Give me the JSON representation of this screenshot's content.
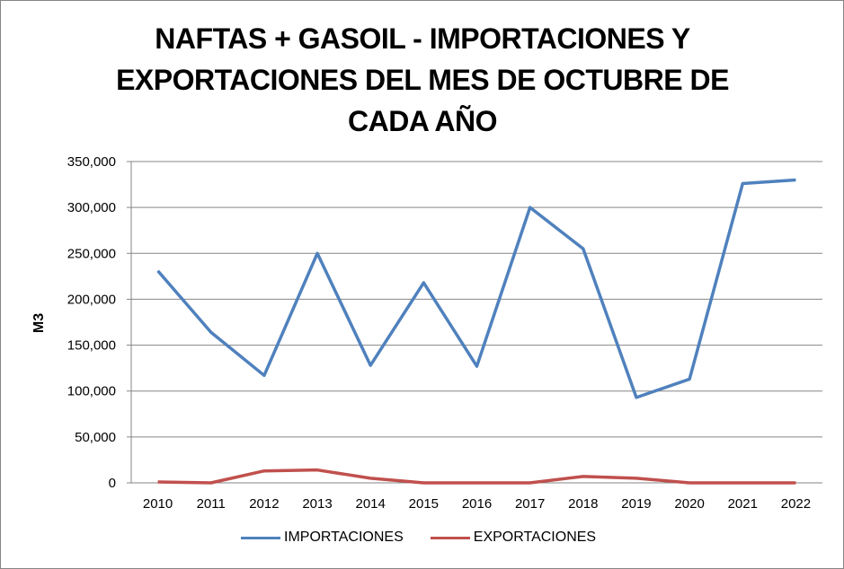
{
  "chart_data": {
    "type": "line",
    "title": "NAFTAS + GASOIL - IMPORTACIONES Y EXPORTACIONES DEL MES DE OCTUBRE DE CADA AÑO",
    "title_lines": [
      "NAFTAS + GASOIL - IMPORTACIONES Y",
      "EXPORTACIONES DEL MES DE OCTUBRE DE",
      "CADA AÑO"
    ],
    "xlabel": "",
    "ylabel": "M3",
    "ylim": [
      0,
      350000
    ],
    "yticks": [
      "0",
      "50,000",
      "100,000",
      "150,000",
      "200,000",
      "250,000",
      "300,000",
      "350,000"
    ],
    "grid": true,
    "legend_position": "bottom",
    "categories": [
      "2010",
      "2011",
      "2012",
      "2013",
      "2014",
      "2015",
      "2016",
      "2017",
      "2018",
      "2019",
      "2020",
      "2021",
      "2022"
    ],
    "series": [
      {
        "name": "IMPORTACIONES",
        "color": "#4F81BD",
        "values": [
          231000,
          164000,
          117000,
          250000,
          128000,
          218000,
          127000,
          300000,
          255000,
          93000,
          113000,
          326000,
          330000
        ]
      },
      {
        "name": "EXPORTACIONES",
        "color": "#C0504D",
        "values": [
          1000,
          0,
          13000,
          14000,
          5000,
          0,
          0,
          0,
          7000,
          5000,
          0,
          0,
          0
        ]
      }
    ]
  }
}
